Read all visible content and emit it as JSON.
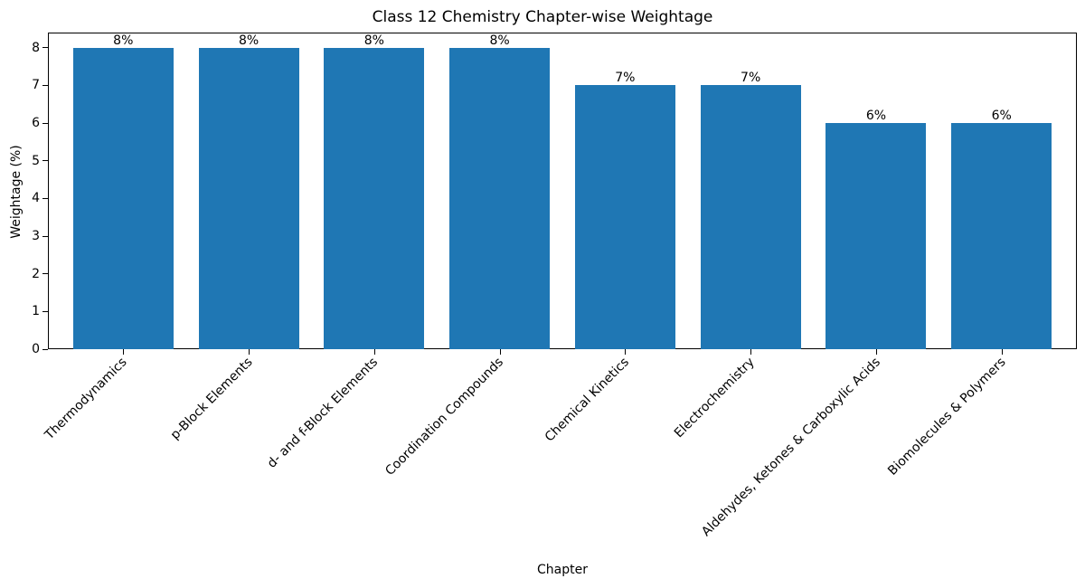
{
  "chart_data": {
    "type": "bar",
    "title": "Class 12 Chemistry Chapter-wise Weightage",
    "xlabel": "Chapter",
    "ylabel": "Weightage (%)",
    "categories": [
      "Thermodynamics",
      "p-Block Elements",
      "d- and f-Block Elements",
      "Coordination Compounds",
      "Chemical Kinetics",
      "Electrochemistry",
      "Aldehydes, Ketones & Carboxylic Acids",
      "Biomolecules & Polymers"
    ],
    "values": [
      8,
      8,
      8,
      8,
      7,
      7,
      6,
      6
    ],
    "data_labels": [
      "8%",
      "8%",
      "8%",
      "8%",
      "7%",
      "7%",
      "6%",
      "6%"
    ],
    "yticks": [
      0,
      1,
      2,
      3,
      4,
      5,
      6,
      7,
      8
    ],
    "ylim": [
      0,
      8.4
    ],
    "grid": false,
    "legend": null,
    "bar_color": "#1f77b4",
    "xtick_rotation": 45
  }
}
